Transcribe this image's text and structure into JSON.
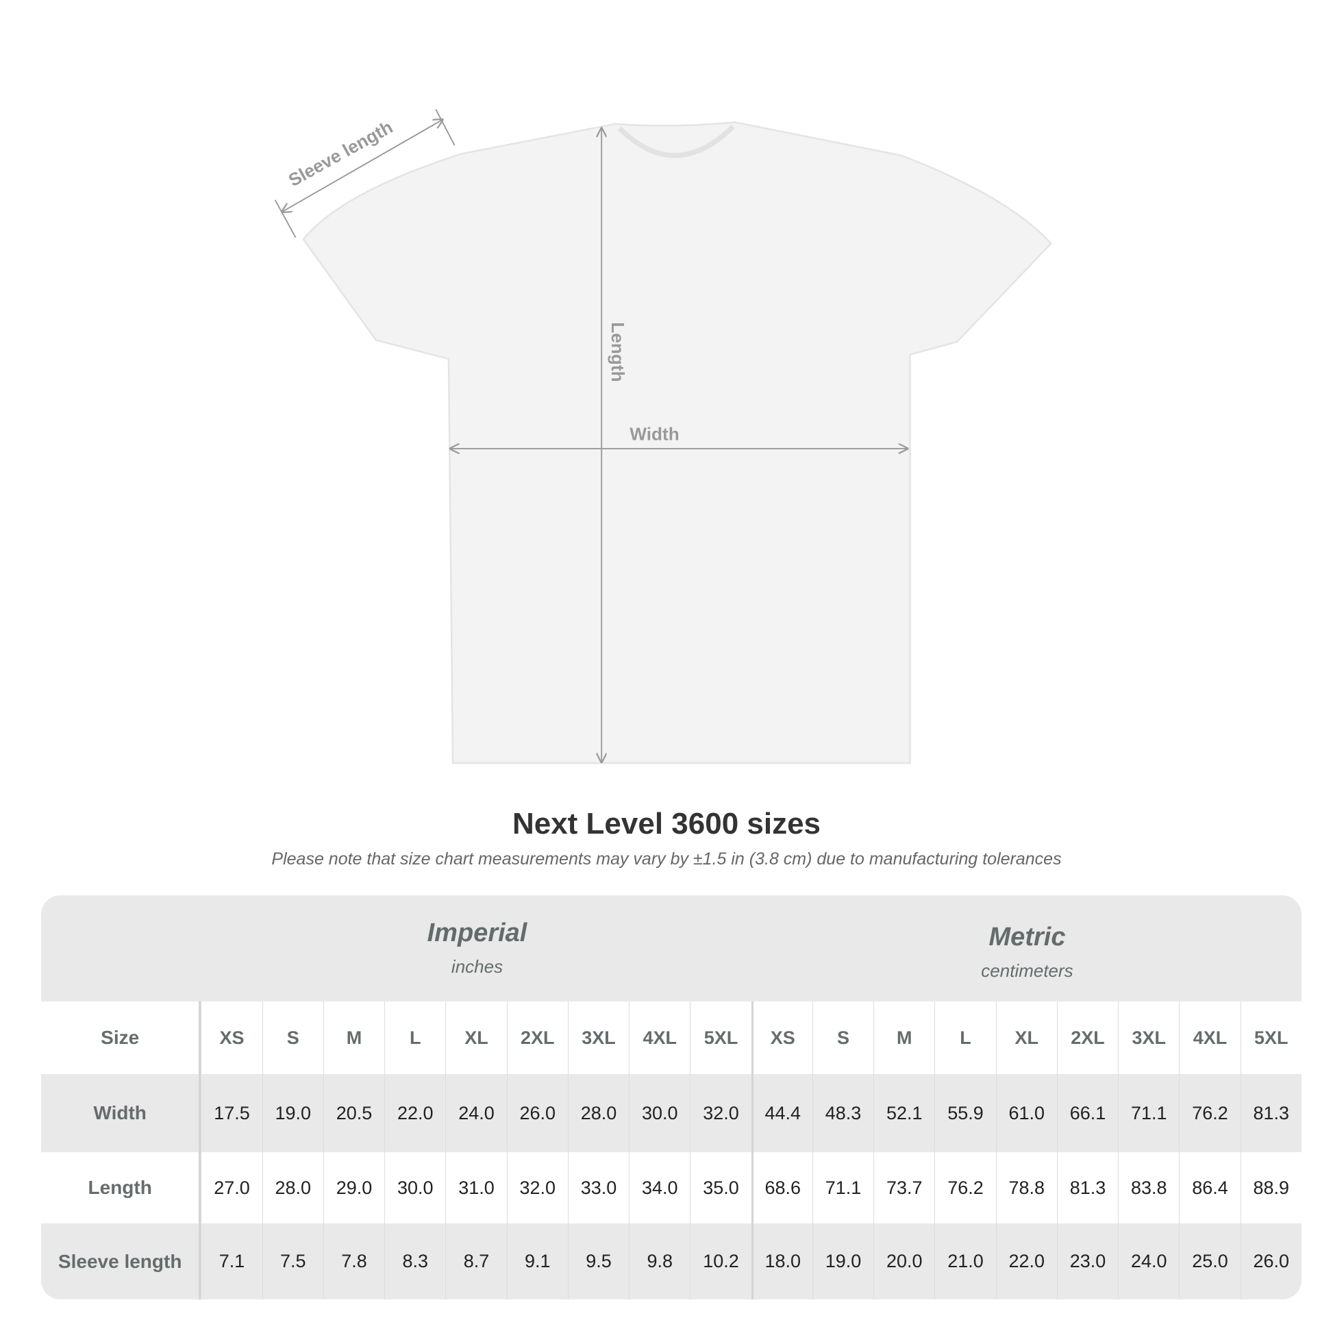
{
  "diagram": {
    "sleeve_label": "Sleeve length",
    "length_label": "Length",
    "width_label": "Width"
  },
  "title": "Next Level 3600 sizes",
  "note": "Please note that size chart measurements may vary by ±1.5 in (3.8 cm) due to manufacturing tolerances",
  "table": {
    "imperial": {
      "heading": "Imperial",
      "unit": "inches"
    },
    "metric": {
      "heading": "Metric",
      "unit": "centimeters"
    },
    "rows": [
      {
        "label": "Size",
        "imperial": [
          "XS",
          "S",
          "M",
          "L",
          "XL",
          "2XL",
          "3XL",
          "4XL",
          "5XL"
        ],
        "metric": [
          "XS",
          "S",
          "M",
          "L",
          "XL",
          "2XL",
          "3XL",
          "4XL",
          "5XL"
        ]
      },
      {
        "label": "Width",
        "imperial": [
          "17.5",
          "19.0",
          "20.5",
          "22.0",
          "24.0",
          "26.0",
          "28.0",
          "30.0",
          "32.0"
        ],
        "metric": [
          "44.4",
          "48.3",
          "52.1",
          "55.9",
          "61.0",
          "66.1",
          "71.1",
          "76.2",
          "81.3"
        ]
      },
      {
        "label": "Length",
        "imperial": [
          "27.0",
          "28.0",
          "29.0",
          "30.0",
          "31.0",
          "32.0",
          "33.0",
          "34.0",
          "35.0"
        ],
        "metric": [
          "68.6",
          "71.1",
          "73.7",
          "76.2",
          "78.8",
          "81.3",
          "83.8",
          "86.4",
          "88.9"
        ]
      },
      {
        "label": "Sleeve length",
        "imperial": [
          "7.1",
          "7.5",
          "7.8",
          "8.3",
          "8.7",
          "9.1",
          "9.5",
          "9.8",
          "10.2"
        ],
        "metric": [
          "18.0",
          "19.0",
          "20.0",
          "21.0",
          "22.0",
          "23.0",
          "24.0",
          "25.0",
          "26.0"
        ]
      }
    ]
  }
}
